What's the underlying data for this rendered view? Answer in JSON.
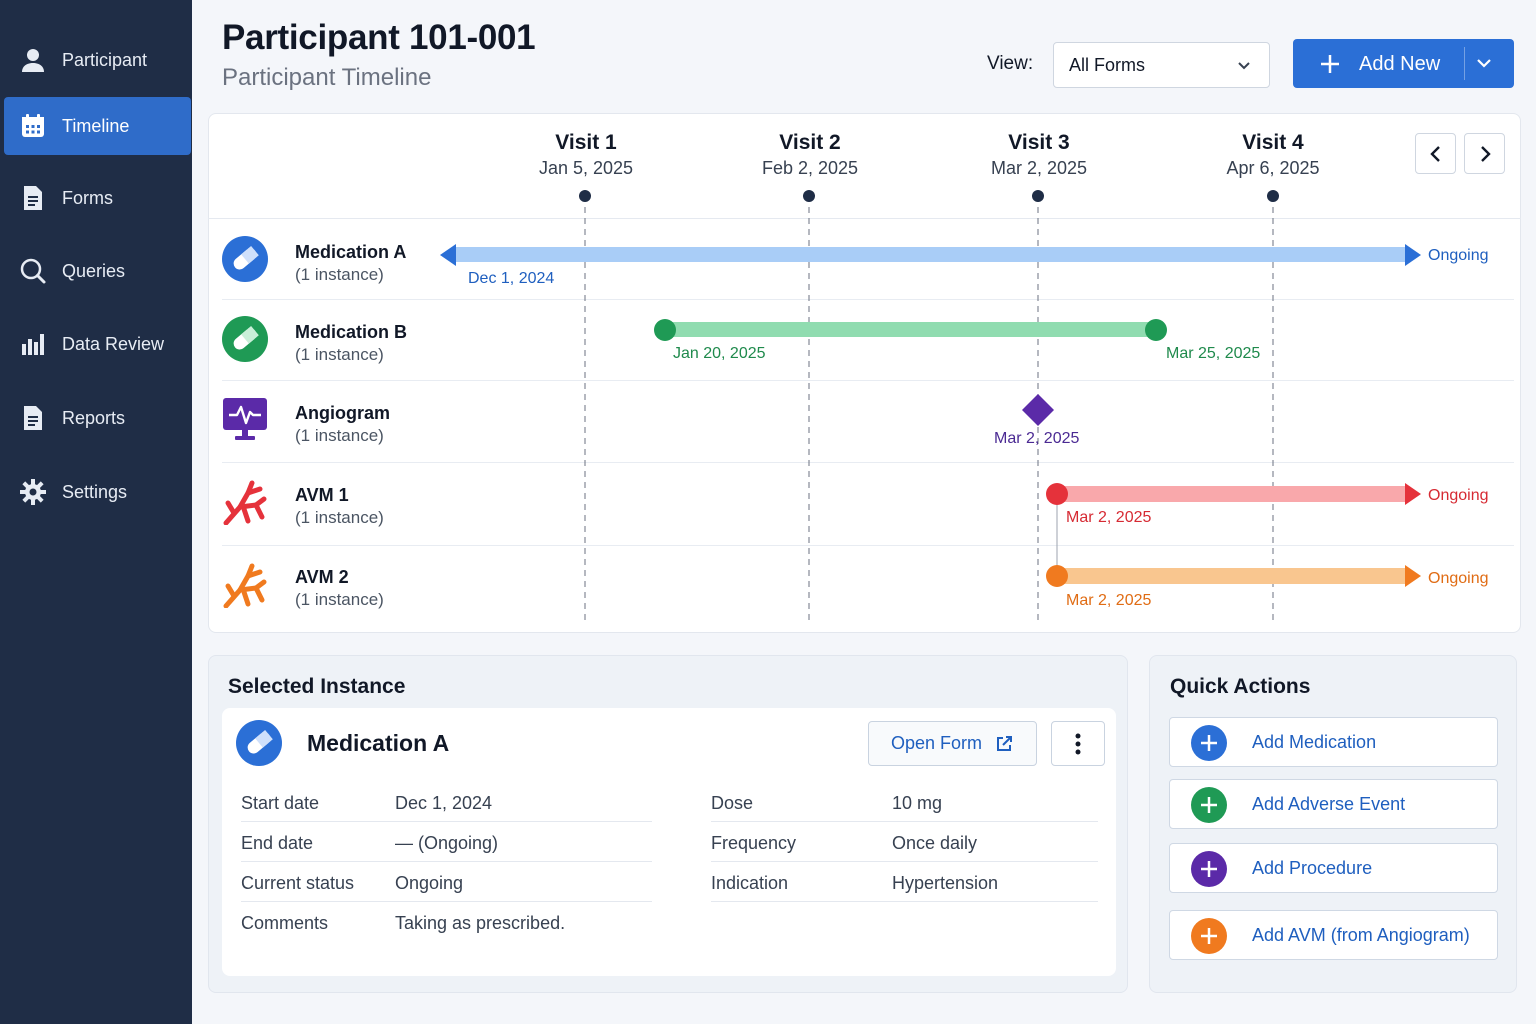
{
  "sidebar": {
    "items": [
      {
        "label": "Participant",
        "icon": "person-icon"
      },
      {
        "label": "Timeline",
        "icon": "calendar-icon",
        "active": true
      },
      {
        "label": "Forms",
        "icon": "document-icon"
      },
      {
        "label": "Queries",
        "icon": "search-icon"
      },
      {
        "label": "Data Review",
        "icon": "bar-chart-icon"
      },
      {
        "label": "Reports",
        "icon": "report-icon"
      },
      {
        "label": "Settings",
        "icon": "gear-icon"
      }
    ]
  },
  "header": {
    "title": "Participant 101-001",
    "subtitle": "Participant Timeline",
    "view_label": "View:",
    "view_value": "All Forms",
    "add_new_label": "Add New"
  },
  "timeline": {
    "visits": [
      {
        "name": "Visit 1",
        "date": "Jan 5, 2025"
      },
      {
        "name": "Visit 2",
        "date": "Feb 2, 2025"
      },
      {
        "name": "Visit 3",
        "date": "Mar 2, 2025"
      },
      {
        "name": "Visit 4",
        "date": "Apr 6, 2025"
      }
    ],
    "rows": [
      {
        "title": "Medication A",
        "sub": "(1 instance)",
        "start_label": "Dec 1, 2024",
        "end_label": "Ongoing",
        "color": "#2b6fd6",
        "bar_color": "#a9cdf7",
        "icon": "pill-icon"
      },
      {
        "title": "Medication B",
        "sub": "(1 instance)",
        "start_label": "Jan 20, 2025",
        "end_label": "Mar 25, 2025",
        "color": "#1f9a55",
        "bar_color": "#90dcb0",
        "icon": "pill-icon"
      },
      {
        "title": "Angiogram",
        "sub": "(1 instance)",
        "start_label": "Mar 2, 2025",
        "color": "#5b2aa8",
        "icon": "monitor-icon"
      },
      {
        "title": "AVM 1",
        "sub": "(1 instance)",
        "start_label": "Mar 2, 2025",
        "end_label": "Ongoing",
        "color": "#e5323b",
        "bar_color": "#f9a8ab",
        "icon": "vessel-icon"
      },
      {
        "title": "AVM 2",
        "sub": "(1 instance)",
        "start_label": "Mar 2, 2025",
        "end_label": "Ongoing",
        "color": "#f07a1f",
        "bar_color": "#f9c68f",
        "icon": "vessel-icon"
      }
    ]
  },
  "selected": {
    "section_title": "Selected Instance",
    "name": "Medication A",
    "open_form_label": "Open Form",
    "left_fields": [
      {
        "label": "Start date",
        "value": "Dec 1, 2024"
      },
      {
        "label": "End date",
        "value": "— (Ongoing)"
      },
      {
        "label": "Current status",
        "value": "Ongoing"
      },
      {
        "label": "Comments",
        "value": "Taking as prescribed."
      }
    ],
    "right_fields": [
      {
        "label": "Dose",
        "value": "10 mg"
      },
      {
        "label": "Frequency",
        "value": "Once daily"
      },
      {
        "label": "Indication",
        "value": "Hypertension"
      }
    ]
  },
  "quick_actions": {
    "title": "Quick Actions",
    "items": [
      {
        "label": "Add Medication",
        "color": "#2b6fd6"
      },
      {
        "label": "Add Adverse Event",
        "color": "#1f9a55"
      },
      {
        "label": "Add Procedure",
        "color": "#5b2aa8"
      },
      {
        "label": "Add AVM (from Angiogram)",
        "color": "#f07a1f"
      }
    ]
  }
}
